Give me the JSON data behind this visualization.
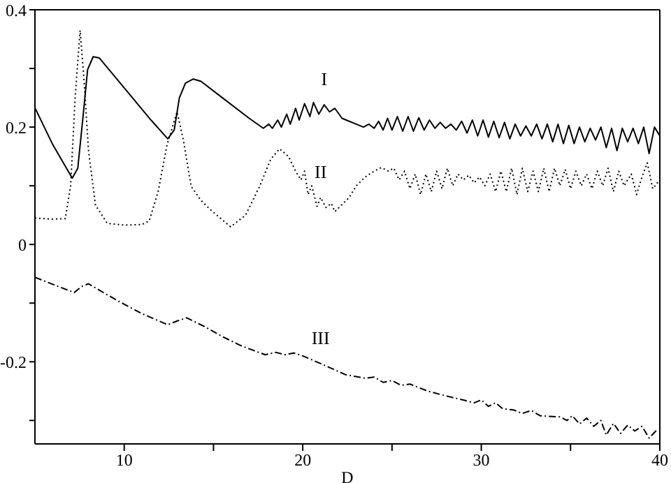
{
  "chart_data": {
    "type": "line",
    "xlabel": "D",
    "xlim": [
      5,
      40
    ],
    "ylim": [
      -0.34,
      0.4
    ],
    "xticks": [
      10,
      {
        "value": 15,
        "label": null
      },
      20,
      {
        "value": 25,
        "label": null
      },
      30,
      {
        "value": 35,
        "label": null
      },
      40
    ],
    "yticks": [
      {
        "value": -0.3,
        "label": null
      },
      -0.2,
      {
        "value": -0.1,
        "label": null
      },
      0,
      {
        "value": 0.1,
        "label": null
      },
      0.2,
      {
        "value": 0.3,
        "label": null
      },
      0.4
    ],
    "grid": false,
    "legend": false,
    "marker": "none",
    "series": [
      {
        "name": "I",
        "color": "#000000",
        "line_style": "solid",
        "x": [
          5,
          6,
          7.09,
          7.4,
          7.7,
          7.95,
          8.26,
          8.6,
          10,
          11.5,
          12.44,
          12.8,
          13.09,
          13.43,
          13.87,
          14.3,
          15.5,
          17,
          17.79,
          18.1,
          18.3,
          18.6,
          18.8,
          19.1,
          19.3,
          19.6,
          19.8,
          20.1,
          20.4,
          20.6,
          20.9,
          21.2,
          21.5,
          21.8,
          22.2,
          22.6,
          23,
          23.4,
          23.7,
          24,
          24.25,
          24.5,
          24.75,
          25,
          25.3,
          25.6,
          25.9,
          26.2,
          26.5,
          26.8,
          27.1,
          27.4,
          27.7,
          28,
          28.3,
          28.6,
          28.9,
          29.2,
          29.5,
          29.8,
          30.1,
          30.4,
          30.7,
          31,
          31.3,
          31.6,
          31.9,
          32.2,
          32.5,
          32.8,
          33.1,
          33.4,
          33.7,
          34,
          34.3,
          34.6,
          34.9,
          35.2,
          35.5,
          35.8,
          36.1,
          36.4,
          36.7,
          37,
          37.3,
          37.6,
          37.9,
          38.2,
          38.5,
          38.8,
          39.1,
          39.4,
          39.7,
          40
        ],
        "values": [
          0.233,
          0.17,
          0.113,
          0.13,
          0.22,
          0.298,
          0.32,
          0.318,
          0.267,
          0.212,
          0.18,
          0.195,
          0.25,
          0.275,
          0.282,
          0.278,
          0.25,
          0.215,
          0.198,
          0.205,
          0.198,
          0.212,
          0.2,
          0.222,
          0.205,
          0.232,
          0.212,
          0.24,
          0.218,
          0.242,
          0.222,
          0.238,
          0.226,
          0.232,
          0.215,
          0.21,
          0.205,
          0.2,
          0.205,
          0.198,
          0.21,
          0.195,
          0.215,
          0.195,
          0.218,
          0.193,
          0.218,
          0.193,
          0.216,
          0.195,
          0.212,
          0.198,
          0.208,
          0.198,
          0.205,
          0.195,
          0.21,
          0.19,
          0.212,
          0.185,
          0.212,
          0.183,
          0.21,
          0.182,
          0.208,
          0.18,
          0.205,
          0.185,
          0.202,
          0.185,
          0.205,
          0.18,
          0.205,
          0.175,
          0.205,
          0.172,
          0.203,
          0.172,
          0.2,
          0.175,
          0.198,
          0.178,
          0.2,
          0.165,
          0.198,
          0.16,
          0.198,
          0.175,
          0.198,
          0.172,
          0.2,
          0.155,
          0.2,
          0.185
        ]
      },
      {
        "name": "II",
        "color": "#000000",
        "line_style": "dotted",
        "x": [
          5,
          6,
          6.7,
          7.0,
          7.25,
          7.53,
          7.75,
          8.0,
          8.39,
          9.05,
          10,
          11,
          11.4,
          11.9,
          12.4,
          12.96,
          13.3,
          13.75,
          14.3,
          14.8,
          15.96,
          16.8,
          17.6,
          18.2,
          18.7,
          19.2,
          19.6,
          19.9,
          20.1,
          20.3,
          20.5,
          20.8,
          21.0,
          21.3,
          21.6,
          21.8,
          22.2,
          22.6,
          23.0,
          23.5,
          24.0,
          24.4,
          24.8,
          25.1,
          25.4,
          25.7,
          26.0,
          26.3,
          26.6,
          26.9,
          27.2,
          27.5,
          27.8,
          28.1,
          28.4,
          28.7,
          29.0,
          29.3,
          29.6,
          29.9,
          30.2,
          30.5,
          30.8,
          31.1,
          31.4,
          31.7,
          32.0,
          32.3,
          32.6,
          32.9,
          33.2,
          33.5,
          33.8,
          34.1,
          34.4,
          34.7,
          35.0,
          35.3,
          35.6,
          35.9,
          36.2,
          36.5,
          36.8,
          37.1,
          37.4,
          37.7,
          38.0,
          38.4,
          38.7,
          39.0,
          39.3,
          39.6,
          40
        ],
        "values": [
          0.045,
          0.043,
          0.044,
          0.1,
          0.25,
          0.365,
          0.28,
          0.16,
          0.067,
          0.036,
          0.033,
          0.034,
          0.04,
          0.09,
          0.17,
          0.226,
          0.18,
          0.099,
          0.075,
          0.06,
          0.03,
          0.05,
          0.1,
          0.145,
          0.163,
          0.15,
          0.125,
          0.11,
          0.125,
          0.085,
          0.1,
          0.065,
          0.08,
          0.063,
          0.07,
          0.056,
          0.068,
          0.08,
          0.1,
          0.115,
          0.125,
          0.131,
          0.125,
          0.13,
          0.11,
          0.125,
          0.095,
          0.12,
          0.085,
          0.12,
          0.09,
          0.125,
          0.095,
          0.13,
          0.1,
          0.12,
          0.11,
          0.118,
          0.105,
          0.115,
          0.1,
          0.12,
          0.09,
          0.125,
          0.09,
          0.13,
          0.085,
          0.13,
          0.09,
          0.125,
          0.09,
          0.13,
          0.09,
          0.13,
          0.1,
          0.128,
          0.095,
          0.125,
          0.1,
          0.12,
          0.095,
          0.125,
          0.1,
          0.13,
          0.09,
          0.125,
          0.1,
          0.12,
          0.085,
          0.115,
          0.139,
          0.095,
          0.11
        ]
      },
      {
        "name": "III",
        "color": "#000000",
        "line_style": "dashed",
        "x": [
          5,
          6,
          7.2,
          7.6,
          8.0,
          9,
          10,
          11,
          12.44,
          13,
          13.5,
          14.5,
          15.5,
          16.5,
          17.1,
          17.9,
          18.5,
          19,
          19.5,
          20,
          21,
          22.4,
          23.5,
          24,
          24.5,
          25,
          25.5,
          26,
          27,
          28,
          29.1,
          29.6,
          30,
          30.4,
          30.8,
          31.2,
          31.8,
          32.3,
          32.8,
          33.3,
          34.4,
          34.8,
          35.1,
          35.5,
          35.9,
          36.3,
          36.7,
          37.0,
          37.4,
          37.8,
          38.2,
          38.6,
          39.0,
          39.4,
          39.9
        ],
        "values": [
          -0.056,
          -0.068,
          -0.082,
          -0.072,
          -0.067,
          -0.085,
          -0.102,
          -0.118,
          -0.137,
          -0.13,
          -0.125,
          -0.14,
          -0.157,
          -0.172,
          -0.179,
          -0.188,
          -0.184,
          -0.188,
          -0.185,
          -0.19,
          -0.203,
          -0.222,
          -0.228,
          -0.226,
          -0.235,
          -0.232,
          -0.24,
          -0.238,
          -0.25,
          -0.258,
          -0.266,
          -0.27,
          -0.265,
          -0.276,
          -0.27,
          -0.28,
          -0.282,
          -0.288,
          -0.283,
          -0.292,
          -0.294,
          -0.3,
          -0.292,
          -0.306,
          -0.296,
          -0.31,
          -0.3,
          -0.325,
          -0.305,
          -0.322,
          -0.308,
          -0.318,
          -0.31,
          -0.33,
          -0.314
        ]
      }
    ]
  }
}
